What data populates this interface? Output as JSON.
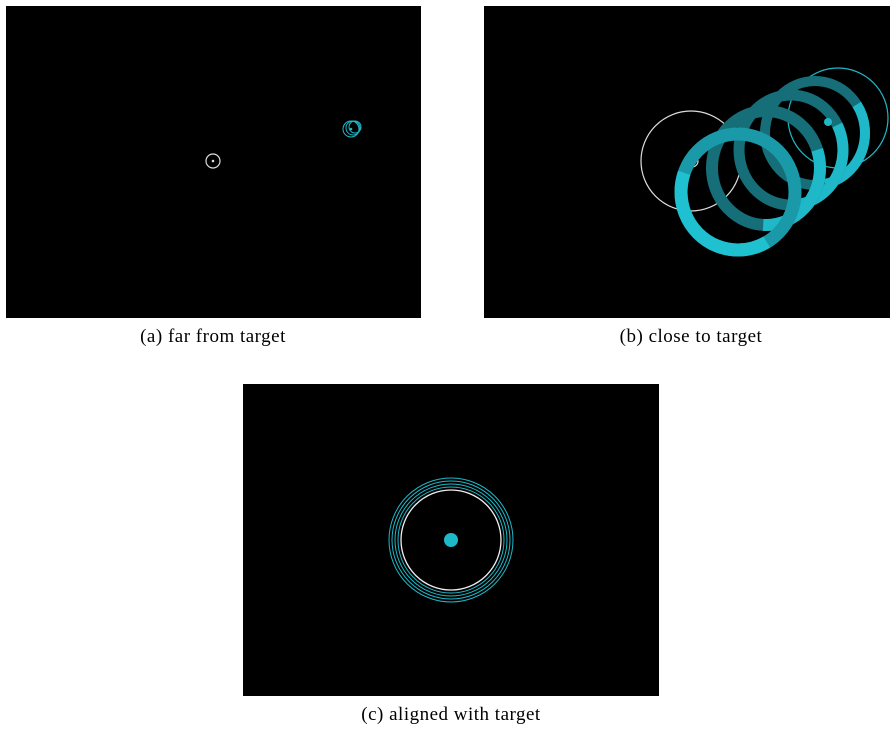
{
  "panels": [
    {
      "caption": "(a) far from target"
    },
    {
      "caption": "(b) close to target"
    },
    {
      "caption": "(c) aligned with target"
    }
  ]
}
